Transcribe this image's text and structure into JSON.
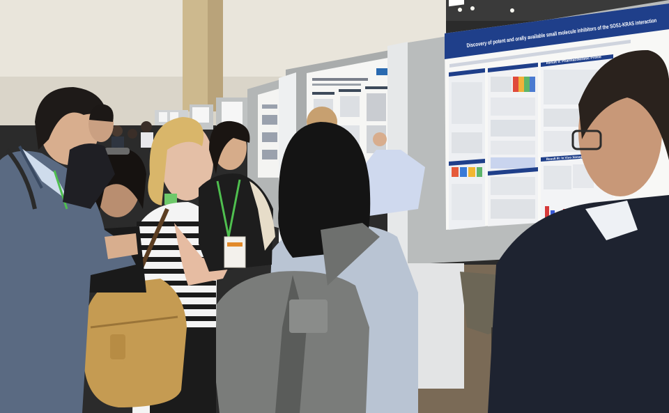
{
  "poster_main": {
    "title": "Discovery of potent and orally available small molecule inhibitors of the SOS1-KRAS interaction",
    "section_pk": "Result II: Pharmacokinetic Profile",
    "section_vivo": "Result III: In Vivo Xenograft"
  },
  "colors": {
    "poster_banner": "#1f3f8a",
    "panel_gray": "#b9bcbc",
    "wall": "#e9e5db",
    "carpet": "#7a6a56"
  }
}
